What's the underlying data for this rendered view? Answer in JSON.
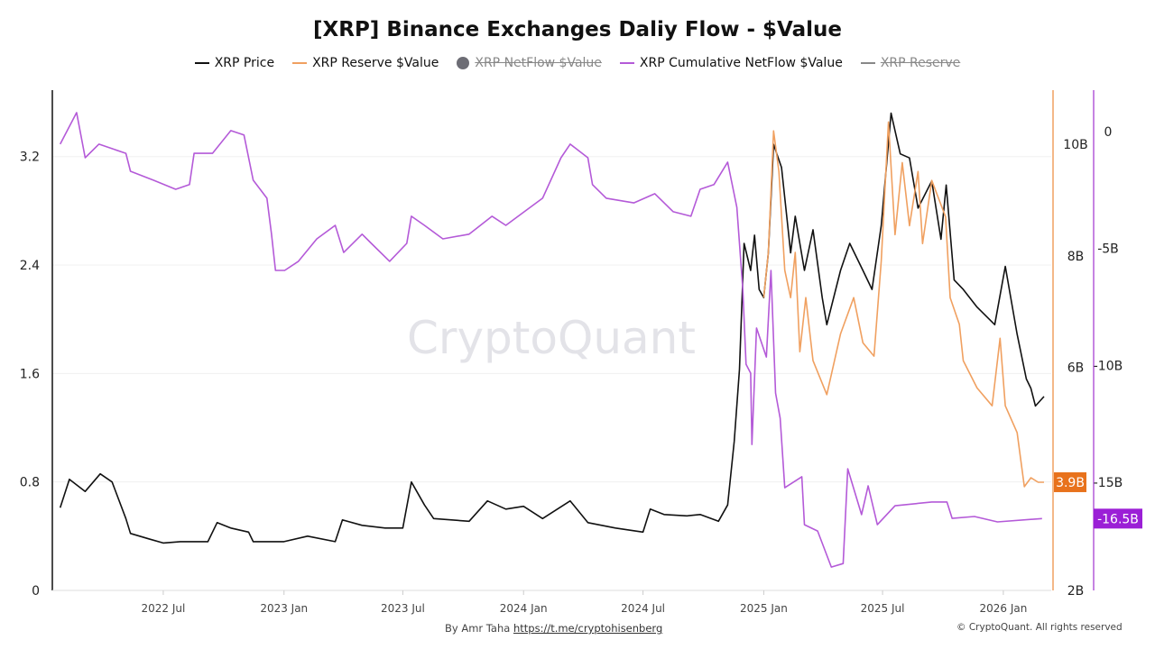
{
  "title": "[XRP] Binance Exchanges Daliy Flow - $Value",
  "legend": [
    {
      "label": "XRP Price",
      "color": "#111111",
      "hidden": false,
      "icon": "line"
    },
    {
      "label": "XRP Reserve $Value",
      "color": "#f0a060",
      "hidden": false,
      "icon": "line"
    },
    {
      "label": "XRP NetFlow $Value",
      "color": "#6d6d75",
      "hidden": true,
      "icon": "circle"
    },
    {
      "label": "XRP Cumulative NetFlow $Value",
      "color": "#b45ad8",
      "hidden": false,
      "icon": "line"
    },
    {
      "label": "XRP Reserve",
      "color": "#888888",
      "hidden": true,
      "icon": "line"
    }
  ],
  "watermark": "CryptoQuant",
  "footer": {
    "by": "By Amr Taha",
    "link": "https://t.me/cryptohisenberg",
    "copyright": "© CryptoQuant. All rights reserved"
  },
  "chart_data": {
    "type": "line",
    "title": "[XRP] Binance Exchanges Daliy Flow - $Value",
    "x_range": [
      "2022-01-13",
      "2026-03-15"
    ],
    "x_ticks": [
      {
        "date": "2022-07-01",
        "label": "2022 Jul"
      },
      {
        "date": "2023-01-01",
        "label": "2023 Jan"
      },
      {
        "date": "2023-07-01",
        "label": "2023 Jul"
      },
      {
        "date": "2024-01-01",
        "label": "2024 Jan"
      },
      {
        "date": "2024-07-01",
        "label": "2024 Jul"
      },
      {
        "date": "2025-01-01",
        "label": "2025 Jan"
      },
      {
        "date": "2025-07-01",
        "label": "2025 Jul"
      },
      {
        "date": "2026-01-01",
        "label": "2026 Jan"
      }
    ],
    "axes": {
      "price": {
        "side": "left",
        "range": [
          0,
          3.69
        ],
        "ticks": [
          0,
          0.8,
          1.6,
          2.4,
          3.2
        ],
        "tick_labels": [
          "0",
          "0.8",
          "1.6",
          "2.4",
          "3.2"
        ],
        "grid": true
      },
      "reserve": {
        "side": "right",
        "color": "#f0a060",
        "range": [
          2,
          10.97
        ],
        "ticks": [
          2,
          6,
          8,
          10
        ],
        "tick_labels": [
          "2B",
          "6B",
          "8B",
          "10B"
        ],
        "last_value_label": "3.9B",
        "badge_color": "#e8721c"
      },
      "cumulative": {
        "side": "right",
        "color": "#b45ad8",
        "range": [
          -19.62,
          1.77
        ],
        "ticks": [
          0,
          -5,
          -10,
          -15
        ],
        "tick_labels": [
          "0",
          "-5B",
          "-10B",
          "-15B"
        ],
        "last_value_label": "-16.5B",
        "badge_color": "#9b1fd6"
      }
    },
    "series": [
      {
        "name": "XRP Price",
        "axis": "price",
        "color": "#111111",
        "points": [
          [
            "2022-01-25",
            0.61
          ],
          [
            "2022-02-08",
            0.82
          ],
          [
            "2022-03-04",
            0.73
          ],
          [
            "2022-03-27",
            0.86
          ],
          [
            "2022-04-14",
            0.8
          ],
          [
            "2022-05-05",
            0.53
          ],
          [
            "2022-05-12",
            0.42
          ],
          [
            "2022-06-09",
            0.38
          ],
          [
            "2022-07-01",
            0.35
          ],
          [
            "2022-07-27",
            0.36
          ],
          [
            "2022-09-07",
            0.36
          ],
          [
            "2022-09-21",
            0.5
          ],
          [
            "2022-10-12",
            0.46
          ],
          [
            "2022-11-08",
            0.43
          ],
          [
            "2022-11-15",
            0.36
          ],
          [
            "2023-01-01",
            0.36
          ],
          [
            "2023-02-06",
            0.4
          ],
          [
            "2023-03-20",
            0.36
          ],
          [
            "2023-03-31",
            0.52
          ],
          [
            "2023-04-30",
            0.48
          ],
          [
            "2023-06-04",
            0.46
          ],
          [
            "2023-07-01",
            0.46
          ],
          [
            "2023-07-14",
            0.8
          ],
          [
            "2023-08-03",
            0.63
          ],
          [
            "2023-08-17",
            0.53
          ],
          [
            "2023-10-10",
            0.51
          ],
          [
            "2023-11-07",
            0.66
          ],
          [
            "2023-12-05",
            0.6
          ],
          [
            "2024-01-01",
            0.62
          ],
          [
            "2024-01-30",
            0.53
          ],
          [
            "2024-03-12",
            0.66
          ],
          [
            "2024-04-08",
            0.5
          ],
          [
            "2024-05-20",
            0.46
          ],
          [
            "2024-07-01",
            0.43
          ],
          [
            "2024-07-12",
            0.6
          ],
          [
            "2024-08-02",
            0.56
          ],
          [
            "2024-09-06",
            0.55
          ],
          [
            "2024-09-26",
            0.56
          ],
          [
            "2024-10-24",
            0.51
          ],
          [
            "2024-11-07",
            0.63
          ],
          [
            "2024-11-17",
            1.1
          ],
          [
            "2024-11-25",
            1.63
          ],
          [
            "2024-12-02",
            2.56
          ],
          [
            "2024-12-12",
            2.36
          ],
          [
            "2024-12-18",
            2.62
          ],
          [
            "2024-12-25",
            2.22
          ],
          [
            "2025-01-01",
            2.16
          ],
          [
            "2025-01-08",
            2.49
          ],
          [
            "2025-01-16",
            3.29
          ],
          [
            "2025-01-28",
            3.12
          ],
          [
            "2025-02-11",
            2.49
          ],
          [
            "2025-02-18",
            2.76
          ],
          [
            "2025-03-04",
            2.36
          ],
          [
            "2025-03-17",
            2.66
          ],
          [
            "2025-03-31",
            2.16
          ],
          [
            "2025-04-07",
            1.96
          ],
          [
            "2025-04-28",
            2.36
          ],
          [
            "2025-05-12",
            2.56
          ],
          [
            "2025-06-01",
            2.36
          ],
          [
            "2025-06-15",
            2.22
          ],
          [
            "2025-06-29",
            2.69
          ],
          [
            "2025-07-14",
            3.52
          ],
          [
            "2025-07-28",
            3.22
          ],
          [
            "2025-08-11",
            3.19
          ],
          [
            "2025-08-24",
            2.82
          ],
          [
            "2025-09-14",
            3.02
          ],
          [
            "2025-09-28",
            2.59
          ],
          [
            "2025-10-06",
            2.99
          ],
          [
            "2025-10-18",
            2.29
          ],
          [
            "2025-11-01",
            2.22
          ],
          [
            "2025-11-22",
            2.09
          ],
          [
            "2025-12-19",
            1.96
          ],
          [
            "2026-01-04",
            2.39
          ],
          [
            "2026-01-22",
            1.89
          ],
          [
            "2026-02-05",
            1.56
          ],
          [
            "2026-02-12",
            1.49
          ],
          [
            "2026-02-19",
            1.36
          ],
          [
            "2026-03-04",
            1.43
          ]
        ]
      },
      {
        "name": "XRP Reserve $Value",
        "axis": "reserve",
        "color": "#f0a060",
        "points": [
          [
            "2025-01-01",
            7.25
          ],
          [
            "2025-01-08",
            8.06
          ],
          [
            "2025-01-16",
            10.24
          ],
          [
            "2025-01-24",
            9.51
          ],
          [
            "2025-02-02",
            7.74
          ],
          [
            "2025-02-11",
            7.25
          ],
          [
            "2025-02-18",
            8.06
          ],
          [
            "2025-02-25",
            6.28
          ],
          [
            "2025-03-06",
            7.25
          ],
          [
            "2025-03-17",
            6.12
          ],
          [
            "2025-04-07",
            5.51
          ],
          [
            "2025-04-28",
            6.6
          ],
          [
            "2025-05-18",
            7.25
          ],
          [
            "2025-06-01",
            6.44
          ],
          [
            "2025-06-18",
            6.2
          ],
          [
            "2025-06-29",
            7.9
          ],
          [
            "2025-07-10",
            10.4
          ],
          [
            "2025-07-20",
            8.38
          ],
          [
            "2025-07-31",
            9.67
          ],
          [
            "2025-08-11",
            8.54
          ],
          [
            "2025-08-24",
            9.51
          ],
          [
            "2025-08-31",
            8.22
          ],
          [
            "2025-09-14",
            9.35
          ],
          [
            "2025-10-05",
            8.7
          ],
          [
            "2025-10-12",
            7.25
          ],
          [
            "2025-10-26",
            6.77
          ],
          [
            "2025-11-01",
            6.12
          ],
          [
            "2025-11-22",
            5.63
          ],
          [
            "2025-12-15",
            5.31
          ],
          [
            "2025-12-27",
            6.52
          ],
          [
            "2026-01-04",
            5.31
          ],
          [
            "2026-01-22",
            4.83
          ],
          [
            "2026-02-02",
            3.86
          ],
          [
            "2026-02-12",
            4.02
          ],
          [
            "2026-02-23",
            3.94
          ],
          [
            "2026-03-04",
            3.94
          ]
        ]
      },
      {
        "name": "XRP Cumulative NetFlow $Value",
        "axis": "cumulative",
        "color": "#b45ad8",
        "points": [
          [
            "2022-01-25",
            -0.54
          ],
          [
            "2022-02-19",
            0.81
          ],
          [
            "2022-03-04",
            -1.12
          ],
          [
            "2022-03-25",
            -0.54
          ],
          [
            "2022-04-14",
            -0.73
          ],
          [
            "2022-05-05",
            -0.93
          ],
          [
            "2022-05-12",
            -1.7
          ],
          [
            "2022-06-16",
            -2.08
          ],
          [
            "2022-07-20",
            -2.47
          ],
          [
            "2022-08-10",
            -2.27
          ],
          [
            "2022-08-17",
            -0.93
          ],
          [
            "2022-09-14",
            -0.93
          ],
          [
            "2022-10-12",
            0.04
          ],
          [
            "2022-11-01",
            -0.15
          ],
          [
            "2022-11-15",
            -2.08
          ],
          [
            "2022-12-06",
            -2.85
          ],
          [
            "2022-12-13",
            -4.39
          ],
          [
            "2022-12-19",
            -5.94
          ],
          [
            "2023-01-02",
            -5.94
          ],
          [
            "2023-01-23",
            -5.55
          ],
          [
            "2023-02-20",
            -4.59
          ],
          [
            "2023-03-20",
            -4.01
          ],
          [
            "2023-04-02",
            -5.17
          ],
          [
            "2023-04-30",
            -4.39
          ],
          [
            "2023-05-14",
            -4.78
          ],
          [
            "2023-06-11",
            -5.55
          ],
          [
            "2023-07-07",
            -4.78
          ],
          [
            "2023-07-14",
            -3.62
          ],
          [
            "2023-08-03",
            -4.01
          ],
          [
            "2023-08-31",
            -4.59
          ],
          [
            "2023-10-10",
            -4.39
          ],
          [
            "2023-11-14",
            -3.62
          ],
          [
            "2023-12-05",
            -4.01
          ],
          [
            "2024-01-02",
            -3.43
          ],
          [
            "2024-01-30",
            -2.85
          ],
          [
            "2024-02-27",
            -1.12
          ],
          [
            "2024-03-12",
            -0.54
          ],
          [
            "2024-04-08",
            -1.12
          ],
          [
            "2024-04-15",
            -2.27
          ],
          [
            "2024-05-06",
            -2.85
          ],
          [
            "2024-06-17",
            -3.05
          ],
          [
            "2024-07-19",
            -2.66
          ],
          [
            "2024-08-16",
            -3.43
          ],
          [
            "2024-09-12",
            -3.62
          ],
          [
            "2024-09-26",
            -2.47
          ],
          [
            "2024-10-17",
            -2.27
          ],
          [
            "2024-11-07",
            -1.31
          ],
          [
            "2024-11-21",
            -3.24
          ],
          [
            "2024-11-30",
            -6.75
          ],
          [
            "2024-12-05",
            -9.95
          ],
          [
            "2024-12-12",
            -10.33
          ],
          [
            "2024-12-14",
            -13.38
          ],
          [
            "2024-12-21",
            -8.4
          ],
          [
            "2025-01-05",
            -9.64
          ],
          [
            "2025-01-12",
            -5.94
          ],
          [
            "2025-01-19",
            -11.18
          ],
          [
            "2025-01-26",
            -12.26
          ],
          [
            "2025-02-02",
            -15.23
          ],
          [
            "2025-02-28",
            -14.76
          ],
          [
            "2025-03-04",
            -16.81
          ],
          [
            "2025-03-24",
            -17.08
          ],
          [
            "2025-04-14",
            -18.62
          ],
          [
            "2025-05-02",
            -18.47
          ],
          [
            "2025-05-09",
            -14.42
          ],
          [
            "2025-05-30",
            -16.38
          ],
          [
            "2025-06-09",
            -15.15
          ],
          [
            "2025-06-23",
            -16.81
          ],
          [
            "2025-07-20",
            -16.0
          ],
          [
            "2025-09-14",
            -15.84
          ],
          [
            "2025-10-07",
            -15.84
          ],
          [
            "2025-10-15",
            -16.54
          ],
          [
            "2025-11-18",
            -16.46
          ],
          [
            "2025-12-23",
            -16.69
          ],
          [
            "2026-03-01",
            -16.55
          ]
        ]
      }
    ]
  }
}
